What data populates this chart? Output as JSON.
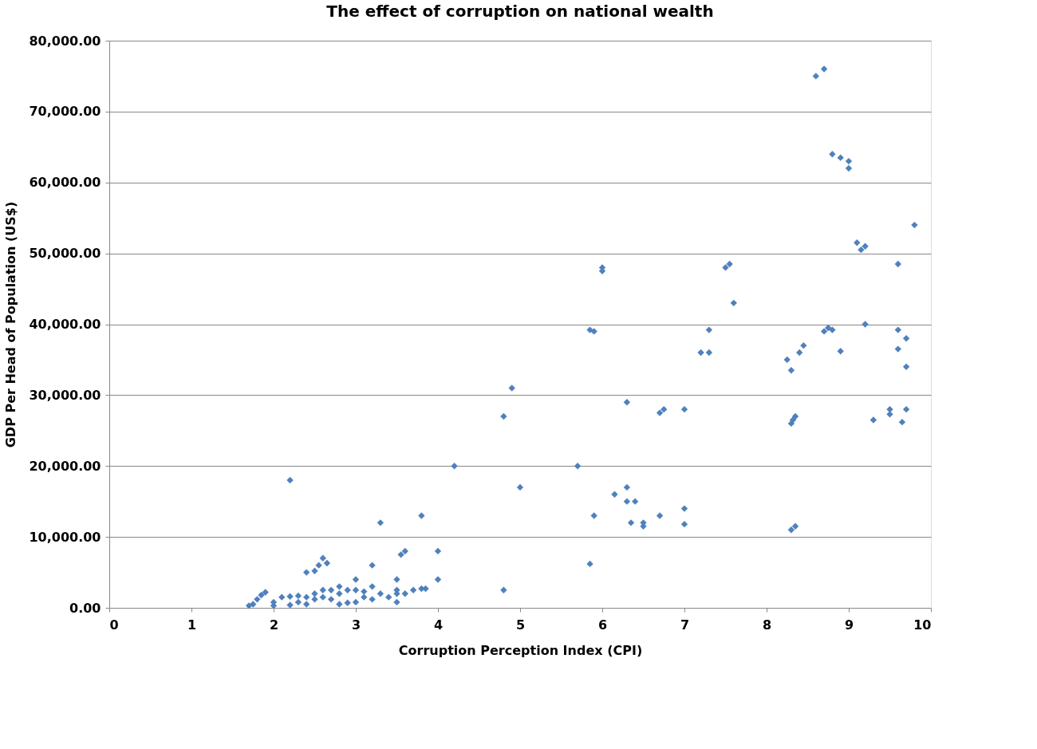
{
  "chart_data": {
    "type": "scatter",
    "title": "The effect of corruption on national wealth",
    "xlabel": "Corruption Perception Index (CPI)",
    "ylabel": "GDP Per Head of Population (US$)",
    "x": [
      1.7,
      1.75,
      1.8,
      1.85,
      1.9,
      2.0,
      2.0,
      2.1,
      2.2,
      2.2,
      2.2,
      2.3,
      2.3,
      2.4,
      2.4,
      2.4,
      2.5,
      2.5,
      2.5,
      2.55,
      2.6,
      2.6,
      2.6,
      2.65,
      2.7,
      2.7,
      2.8,
      2.8,
      2.8,
      2.9,
      2.9,
      3.0,
      3.0,
      3.0,
      3.1,
      3.1,
      3.2,
      3.2,
      3.2,
      3.3,
      3.3,
      3.4,
      3.5,
      3.5,
      3.5,
      3.5,
      3.55,
      3.6,
      3.6,
      3.7,
      3.8,
      3.8,
      3.85,
      4.0,
      4.0,
      4.2,
      4.8,
      4.8,
      4.9,
      5.0,
      5.7,
      5.85,
      5.9,
      5.85,
      5.9,
      6.0,
      6.0,
      6.15,
      6.3,
      6.3,
      6.3,
      6.4,
      6.35,
      6.5,
      6.5,
      6.7,
      6.7,
      6.75,
      7.0,
      7.0,
      7.0,
      7.2,
      7.3,
      7.3,
      7.5,
      7.55,
      7.6,
      8.25,
      8.3,
      8.3,
      8.32,
      8.35,
      8.3,
      8.35,
      8.4,
      8.45,
      8.6,
      8.7,
      8.7,
      8.75,
      8.8,
      8.8,
      8.9,
      9.0,
      9.0,
      8.9,
      9.1,
      9.15,
      9.2,
      9.2,
      9.3,
      9.5,
      9.5,
      9.6,
      9.6,
      9.6,
      9.65,
      9.7,
      9.7,
      9.7,
      9.8
    ],
    "series": [
      {
        "color": "#4f81bd",
        "values": [
          300,
          500,
          1200,
          1800,
          2200,
          800,
          300,
          1500,
          18000,
          1600,
          400,
          1700,
          800,
          5000,
          1500,
          500,
          5200,
          2000,
          1200,
          6000,
          7000,
          2500,
          1500,
          6300,
          2500,
          1200,
          3000,
          2000,
          500,
          2500,
          700,
          4000,
          2500,
          800,
          2300,
          1500,
          6000,
          3000,
          1200,
          12000,
          2000,
          1500,
          4000,
          2500,
          2000,
          800,
          7500,
          8000,
          2000,
          2500,
          13000,
          2700,
          2700,
          8000,
          4000,
          20000,
          27000,
          2500,
          31000,
          17000,
          20000,
          39200,
          39000,
          6200,
          13000,
          48000,
          47500,
          16000,
          29000,
          17000,
          15000,
          15000,
          12000,
          12000,
          11500,
          13000,
          27500,
          28000,
          28000,
          14000,
          11800,
          36000,
          39200,
          36000,
          48000,
          48500,
          43000,
          35000,
          33500,
          26000,
          26500,
          27000,
          11000,
          11500,
          36000,
          37000,
          75000,
          76000,
          39000,
          39500,
          39200,
          64000,
          63500,
          63000,
          62000,
          36200,
          51500,
          50500,
          51000,
          40000,
          26500,
          28000,
          27300,
          48500,
          39200,
          36500,
          26200,
          38000,
          34000,
          28000,
          54000
        ]
      }
    ],
    "xlim": [
      0,
      10
    ],
    "xticks": [
      0,
      1,
      2,
      3,
      4,
      5,
      6,
      7,
      8,
      9,
      10
    ],
    "ylim": [
      0,
      80000
    ],
    "yticks": [
      {
        "value": 0,
        "label": "0.00"
      },
      {
        "value": 10000,
        "label": "10,000.00"
      },
      {
        "value": 20000,
        "label": "20,000.00"
      },
      {
        "value": 30000,
        "label": "30,000.00"
      },
      {
        "value": 40000,
        "label": "40,000.00"
      },
      {
        "value": 50000,
        "label": "50,000.00"
      },
      {
        "value": 60000,
        "label": "60,000.00"
      },
      {
        "value": 70000,
        "label": "70,000.00"
      },
      {
        "value": 80000,
        "label": "80,000.00"
      }
    ],
    "grid": "y",
    "legend": false,
    "marker": "diamond"
  }
}
